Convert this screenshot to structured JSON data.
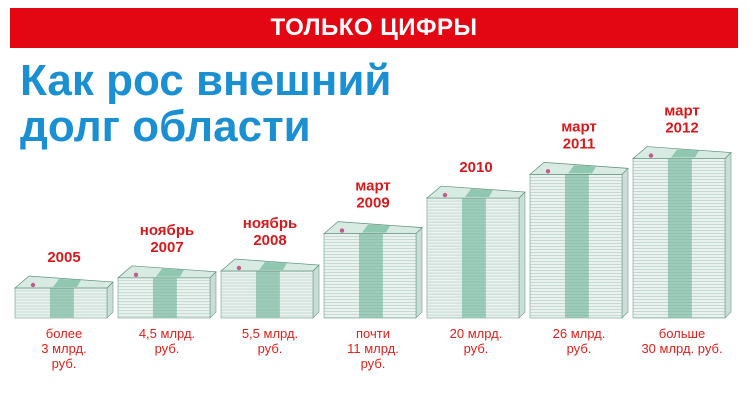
{
  "banner": {
    "text": "ТОЛЬКО ЦИФРЫ"
  },
  "headline": {
    "line1": "Как рос внешний",
    "line2": "долг области"
  },
  "colors": {
    "banner_bg": "#e30613",
    "headline": "#1a8fd1",
    "year_label": "#d7191c",
    "value_label": "#e0201a",
    "stack_green": "#8fc7b0",
    "stack_paper": "#eaf2ef"
  },
  "chart_data": {
    "type": "bar",
    "categories": [
      "2005",
      "ноябрь\n2007",
      "ноябрь\n2008",
      "март\n2009",
      "2010",
      "март\n2011",
      "март\n2012"
    ],
    "values": [
      3,
      4.5,
      5.5,
      11,
      20,
      26,
      30
    ],
    "value_labels": [
      "более\n3 млрд.\nруб.",
      "4,5 млрд.\nруб.",
      "5,5 млрд.\nруб.",
      "почти\n11 млрд.\nруб.",
      "20 млрд.\nруб.",
      "26 млрд.\nруб.",
      "больше\n30 млрд. руб."
    ],
    "unit": "млрд. руб.",
    "mark": "stack-of-banknotes",
    "grid": false,
    "legend": "none"
  }
}
